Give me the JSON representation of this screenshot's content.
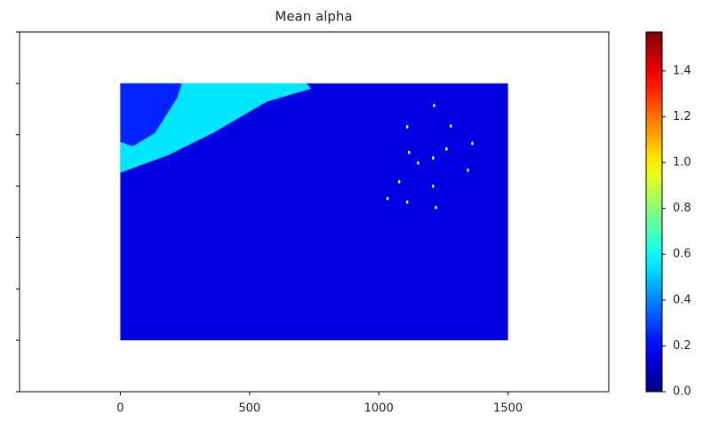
{
  "chart_data": {
    "type": "image",
    "title": "Mean alpha",
    "colormap": "jet",
    "xlim": [
      -390,
      1890
    ],
    "xticks": [
      0,
      500,
      1000,
      1500
    ],
    "ylim": [
      1200,
      -200
    ],
    "yticks": [
      -200,
      0,
      200,
      400,
      600,
      800,
      1000,
      1200
    ],
    "ytick_labels": false,
    "extent": [
      0,
      1500,
      1000,
      0
    ],
    "background_value": 0.15,
    "regions": [
      {
        "value": 0.55,
        "points": [
          [
            0,
            0
          ],
          [
            721,
            0
          ],
          [
            738,
            21
          ],
          [
            566,
            72
          ],
          [
            359,
            193
          ],
          [
            186,
            279
          ],
          [
            0,
            348
          ]
        ]
      },
      {
        "value": 0.25,
        "points": [
          [
            0,
            0
          ],
          [
            238,
            0
          ],
          [
            221,
            55
          ],
          [
            134,
            193
          ],
          [
            48,
            245
          ],
          [
            0,
            228
          ]
        ]
      }
    ],
    "spots": [
      {
        "x": 1110,
        "y": 169,
        "value": 0.9
      },
      {
        "x": 1117,
        "y": 269,
        "value": 0.9
      },
      {
        "x": 1152,
        "y": 310,
        "value": 0.9
      },
      {
        "x": 1210,
        "y": 290,
        "value": 0.9
      },
      {
        "x": 1210,
        "y": 400,
        "value": 0.9
      },
      {
        "x": 1262,
        "y": 255,
        "value": 0.9
      },
      {
        "x": 1279,
        "y": 166,
        "value": 0.9
      },
      {
        "x": 1345,
        "y": 338,
        "value": 0.9
      },
      {
        "x": 1079,
        "y": 383,
        "value": 0.9
      },
      {
        "x": 1034,
        "y": 448,
        "value": 0.9
      },
      {
        "x": 1110,
        "y": 462,
        "value": 0.9
      },
      {
        "x": 1221,
        "y": 483,
        "value": 0.9
      },
      {
        "x": 1362,
        "y": 234,
        "value": 0.9
      },
      {
        "x": 1214,
        "y": 86,
        "value": 0.9
      }
    ],
    "clim": [
      0,
      1.57
    ],
    "cticks": [
      {
        "value": 0,
        "label": "0.0"
      },
      0.2,
      0.4,
      0.6,
      0.8,
      {
        "value": 1,
        "label": "1.0"
      },
      1.2,
      1.4
    ]
  }
}
